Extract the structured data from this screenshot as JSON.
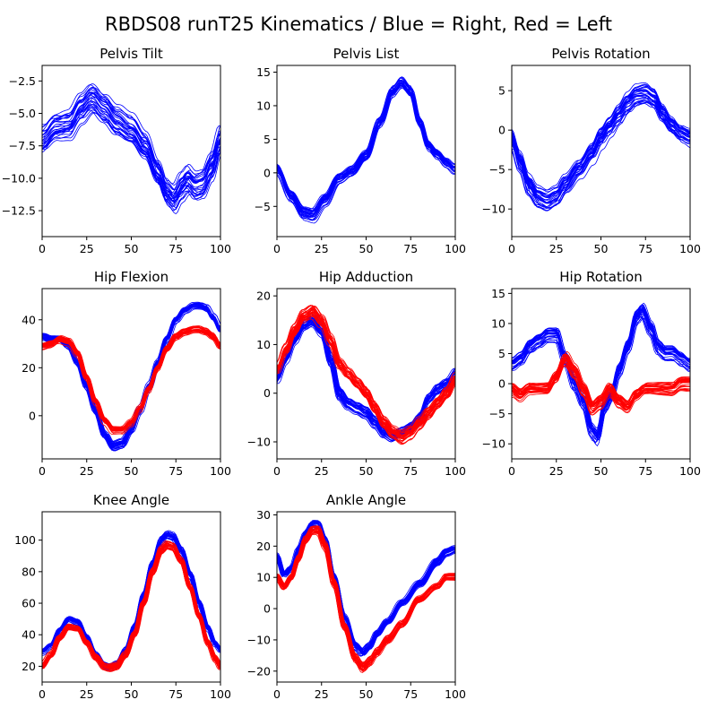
{
  "figure": {
    "title": "RBDS08 runT25 Kinematics / Blue = Right, Red = Left",
    "right_color": "#0000ff",
    "left_color": "#ff0000"
  },
  "chart_data": [
    {
      "type": "line",
      "title": "Pelvis Tilt",
      "xlim": [
        0,
        100
      ],
      "ylim": [
        -14.5,
        -1.3
      ],
      "xticks": [
        0,
        25,
        50,
        75,
        100
      ],
      "yticks": [
        -2.5,
        -5.0,
        -7.5,
        -10.0,
        -12.5
      ],
      "ytick_labels": [
        "−2.5",
        "−5.0",
        "−7.5",
        "−10.0",
        "−12.5"
      ],
      "series": [
        {
          "side": "right",
          "color": "#0000ff",
          "trials": 30,
          "spread": 1.0,
          "x": [
            0,
            8,
            15,
            22,
            28,
            35,
            42,
            50,
            58,
            65,
            70,
            74,
            78,
            82,
            86,
            90,
            95,
            100
          ],
          "y": [
            -7.0,
            -6.0,
            -5.8,
            -4.5,
            -3.7,
            -4.5,
            -5.5,
            -6.2,
            -7.5,
            -9.5,
            -11.0,
            -11.5,
            -10.6,
            -10.0,
            -10.5,
            -10.3,
            -9.0,
            -7.0
          ]
        }
      ]
    },
    {
      "type": "line",
      "title": "Pelvis List",
      "xlim": [
        0,
        100
      ],
      "ylim": [
        -9.5,
        16
      ],
      "xticks": [
        0,
        25,
        50,
        75,
        100
      ],
      "yticks": [
        15,
        10,
        5,
        0,
        -5
      ],
      "ytick_labels": [
        "15",
        "10",
        "5",
        "0",
        "−5"
      ],
      "series": [
        {
          "side": "right",
          "color": "#0000ff",
          "trials": 30,
          "spread": 0.7,
          "x": [
            0,
            8,
            15,
            20,
            27,
            35,
            42,
            50,
            58,
            65,
            70,
            75,
            80,
            85,
            90,
            95,
            100
          ],
          "y": [
            0.5,
            -3.5,
            -6.0,
            -6.3,
            -4.0,
            -0.8,
            0.2,
            2.5,
            7.5,
            12.0,
            13.3,
            12.0,
            7.5,
            4.0,
            2.8,
            1.5,
            0.5
          ]
        }
      ]
    },
    {
      "type": "line",
      "title": "Pelvis Rotation",
      "xlim": [
        0,
        100
      ],
      "ylim": [
        -13.5,
        8.2
      ],
      "xticks": [
        0,
        25,
        50,
        75,
        100
      ],
      "yticks": [
        5,
        0,
        -5,
        -10
      ],
      "ytick_labels": [
        "5",
        "0",
        "−5",
        "−10"
      ],
      "series": [
        {
          "side": "right",
          "color": "#0000ff",
          "trials": 30,
          "spread": 1.1,
          "x": [
            0,
            5,
            10,
            15,
            20,
            25,
            30,
            38,
            45,
            50,
            55,
            60,
            65,
            70,
            75,
            80,
            85,
            90,
            95,
            100
          ],
          "y": [
            -1.0,
            -4.0,
            -7.0,
            -8.5,
            -9.0,
            -8.5,
            -7.0,
            -5.0,
            -3.0,
            -1.0,
            0.5,
            2.0,
            3.5,
            4.5,
            4.7,
            4.0,
            2.0,
            0.5,
            -0.5,
            -1.0
          ]
        }
      ]
    },
    {
      "type": "line",
      "title": "Hip Flexion",
      "xlim": [
        0,
        100
      ],
      "ylim": [
        -18,
        53
      ],
      "xticks": [
        0,
        25,
        50,
        75,
        100
      ],
      "yticks": [
        40,
        20,
        0
      ],
      "ytick_labels": [
        "40",
        "20",
        "0"
      ],
      "series": [
        {
          "side": "right",
          "color": "#0000ff",
          "trials": 30,
          "spread": 1.2,
          "x": [
            0,
            5,
            10,
            15,
            20,
            25,
            30,
            35,
            40,
            45,
            50,
            55,
            60,
            65,
            70,
            75,
            80,
            85,
            88,
            92,
            96,
            100
          ],
          "y": [
            33,
            32,
            32,
            29,
            22,
            12,
            2,
            -8,
            -13,
            -12,
            -6,
            2,
            12,
            22,
            32,
            40,
            44,
            46,
            46,
            45,
            41,
            36
          ]
        },
        {
          "side": "left",
          "color": "#ff0000",
          "trials": 30,
          "spread": 1.2,
          "x": [
            0,
            5,
            10,
            15,
            20,
            25,
            30,
            35,
            40,
            45,
            50,
            55,
            60,
            65,
            70,
            75,
            80,
            85,
            88,
            92,
            96,
            100
          ],
          "y": [
            29,
            30,
            32,
            31,
            26,
            16,
            6,
            -2,
            -6,
            -6,
            -3,
            3,
            11,
            20,
            28,
            33,
            35,
            36,
            36,
            35,
            33,
            29
          ]
        }
      ]
    },
    {
      "type": "line",
      "title": "Hip Adduction",
      "xlim": [
        0,
        100
      ],
      "ylim": [
        -13.5,
        21.5
      ],
      "xticks": [
        0,
        25,
        50,
        75,
        100
      ],
      "yticks": [
        20,
        10,
        0,
        -10
      ],
      "ytick_labels": [
        "20",
        "10",
        "0",
        "−10"
      ],
      "series": [
        {
          "side": "right",
          "color": "#0000ff",
          "trials": 30,
          "spread": 1.0,
          "x": [
            0,
            5,
            10,
            15,
            20,
            25,
            30,
            35,
            40,
            45,
            50,
            55,
            60,
            65,
            70,
            75,
            80,
            85,
            90,
            95,
            100
          ],
          "y": [
            3,
            7,
            11,
            14,
            15,
            13,
            7,
            0,
            -2,
            -3,
            -4,
            -6,
            -8,
            -9,
            -8,
            -7,
            -5,
            -1,
            1,
            2,
            4
          ]
        },
        {
          "side": "left",
          "color": "#ff0000",
          "trials": 30,
          "spread": 1.0,
          "x": [
            0,
            5,
            10,
            15,
            20,
            25,
            30,
            35,
            40,
            45,
            50,
            55,
            60,
            65,
            70,
            75,
            80,
            85,
            90,
            95,
            100
          ],
          "y": [
            5,
            9,
            13,
            16,
            17,
            15,
            11,
            6,
            4,
            2,
            0,
            -3,
            -6,
            -8,
            -9,
            -8,
            -6,
            -4,
            -2,
            0,
            3
          ]
        }
      ]
    },
    {
      "type": "line",
      "title": "Hip Rotation",
      "xlim": [
        0,
        100
      ],
      "ylim": [
        -12.5,
        15.8
      ],
      "xticks": [
        0,
        25,
        50,
        75,
        100
      ],
      "yticks": [
        15,
        10,
        5,
        0,
        -5,
        -10
      ],
      "ytick_labels": [
        "15",
        "10",
        "5",
        "0",
        "−5",
        "−10"
      ],
      "series": [
        {
          "side": "right",
          "color": "#0000ff",
          "trials": 30,
          "spread": 1.0,
          "x": [
            0,
            5,
            10,
            15,
            20,
            25,
            30,
            35,
            40,
            45,
            48,
            52,
            56,
            60,
            65,
            70,
            73,
            78,
            82,
            86,
            90,
            95,
            100
          ],
          "y": [
            3,
            4,
            6,
            7,
            8,
            8,
            4,
            0,
            -3,
            -8,
            -9,
            -4,
            -2,
            2,
            6,
            11,
            12,
            9,
            6,
            5,
            5,
            4,
            3
          ]
        },
        {
          "side": "left",
          "color": "#ff0000",
          "trials": 30,
          "spread": 1.0,
          "x": [
            0,
            5,
            10,
            15,
            20,
            25,
            30,
            35,
            40,
            45,
            50,
            55,
            60,
            65,
            70,
            75,
            80,
            85,
            90,
            95,
            100
          ],
          "y": [
            -1,
            -2,
            -1,
            -1,
            -1,
            1,
            4,
            2,
            -1,
            -4,
            -3,
            -1,
            -3,
            -4,
            -2,
            -1,
            -1,
            -1,
            -1,
            0,
            0
          ]
        }
      ]
    },
    {
      "type": "line",
      "title": "Knee Angle",
      "xlim": [
        0,
        100
      ],
      "ylim": [
        10,
        118
      ],
      "xticks": [
        0,
        25,
        50,
        75,
        100
      ],
      "yticks": [
        100,
        80,
        60,
        40,
        20
      ],
      "ytick_labels": [
        "100",
        "80",
        "60",
        "40",
        "20"
      ],
      "series": [
        {
          "side": "right",
          "color": "#0000ff",
          "trials": 30,
          "spread": 1.5,
          "x": [
            0,
            5,
            10,
            15,
            20,
            25,
            30,
            35,
            38,
            42,
            47,
            52,
            57,
            62,
            67,
            70,
            73,
            78,
            83,
            88,
            93,
            97,
            100
          ],
          "y": [
            29,
            33,
            43,
            50,
            48,
            38,
            27,
            20,
            19,
            21,
            30,
            45,
            65,
            85,
            100,
            103,
            102,
            93,
            78,
            60,
            44,
            34,
            30
          ]
        },
        {
          "side": "left",
          "color": "#ff0000",
          "trials": 30,
          "spread": 1.5,
          "x": [
            0,
            5,
            10,
            15,
            20,
            25,
            30,
            35,
            38,
            42,
            47,
            52,
            57,
            62,
            67,
            70,
            73,
            78,
            83,
            88,
            93,
            97,
            100
          ],
          "y": [
            20,
            27,
            38,
            45,
            44,
            35,
            26,
            20,
            19,
            20,
            27,
            40,
            60,
            80,
            94,
            97,
            96,
            87,
            70,
            52,
            35,
            25,
            20
          ]
        }
      ]
    },
    {
      "type": "line",
      "title": "Ankle Angle",
      "xlim": [
        0,
        100
      ],
      "ylim": [
        -23.5,
        31
      ],
      "xticks": [
        0,
        25,
        50,
        75,
        100
      ],
      "yticks": [
        30,
        20,
        10,
        0,
        -10,
        -20
      ],
      "ytick_labels": [
        "30",
        "20",
        "10",
        "0",
        "−10",
        "−20"
      ],
      "series": [
        {
          "side": "right",
          "color": "#0000ff",
          "trials": 30,
          "spread": 0.9,
          "x": [
            0,
            4,
            8,
            12,
            16,
            20,
            23,
            27,
            32,
            38,
            44,
            48,
            52,
            56,
            62,
            70,
            80,
            90,
            95,
            100
          ],
          "y": [
            17,
            11,
            13,
            19,
            24,
            27,
            27,
            22,
            10,
            -3,
            -12,
            -14,
            -12,
            -8,
            -4,
            2,
            8,
            15,
            18,
            19
          ]
        },
        {
          "side": "left",
          "color": "#ff0000",
          "trials": 30,
          "spread": 0.9,
          "x": [
            0,
            4,
            8,
            12,
            16,
            20,
            23,
            27,
            32,
            38,
            44,
            48,
            52,
            56,
            62,
            70,
            80,
            90,
            95,
            100
          ],
          "y": [
            10,
            7,
            10,
            16,
            22,
            25,
            25,
            20,
            8,
            -6,
            -16,
            -19,
            -17,
            -14,
            -10,
            -5,
            3,
            7,
            10,
            10
          ]
        }
      ]
    }
  ]
}
